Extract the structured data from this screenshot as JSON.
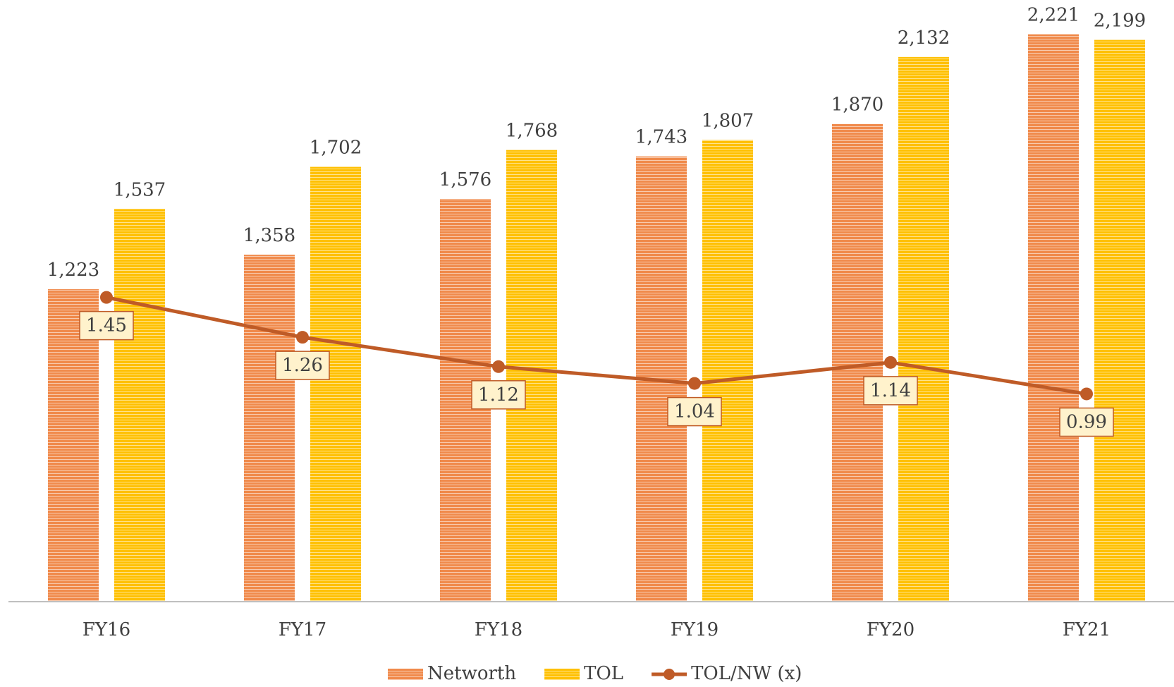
{
  "chart_data": {
    "type": "bar",
    "categories": [
      "FY16",
      "FY17",
      "FY18",
      "FY19",
      "FY20",
      "FY21"
    ],
    "series": [
      {
        "name": "Networth",
        "type": "bar",
        "color": "#f08a4b",
        "values": [
          1223,
          1358,
          1576,
          1743,
          1870,
          2221
        ],
        "value_labels": [
          "1,223",
          "1,358",
          "1,576",
          "1,743",
          "1,870",
          "2,221"
        ]
      },
      {
        "name": "TOL",
        "type": "bar",
        "color": "#ffc000",
        "values": [
          1537,
          1702,
          1768,
          1807,
          2132,
          2199
        ],
        "value_labels": [
          "1,537",
          "1,702",
          "1,768",
          "1,807",
          "2,132",
          "2,199"
        ]
      },
      {
        "name": "TOL/NW (x)",
        "type": "line",
        "axis": "y2",
        "color": "#bf5b27",
        "values": [
          1.45,
          1.26,
          1.12,
          1.04,
          1.14,
          0.99
        ]
      }
    ],
    "ylim": [
      0,
      2300
    ],
    "y2lim": [
      0,
      2.8
    ],
    "grid": false,
    "legend": "bottom"
  }
}
